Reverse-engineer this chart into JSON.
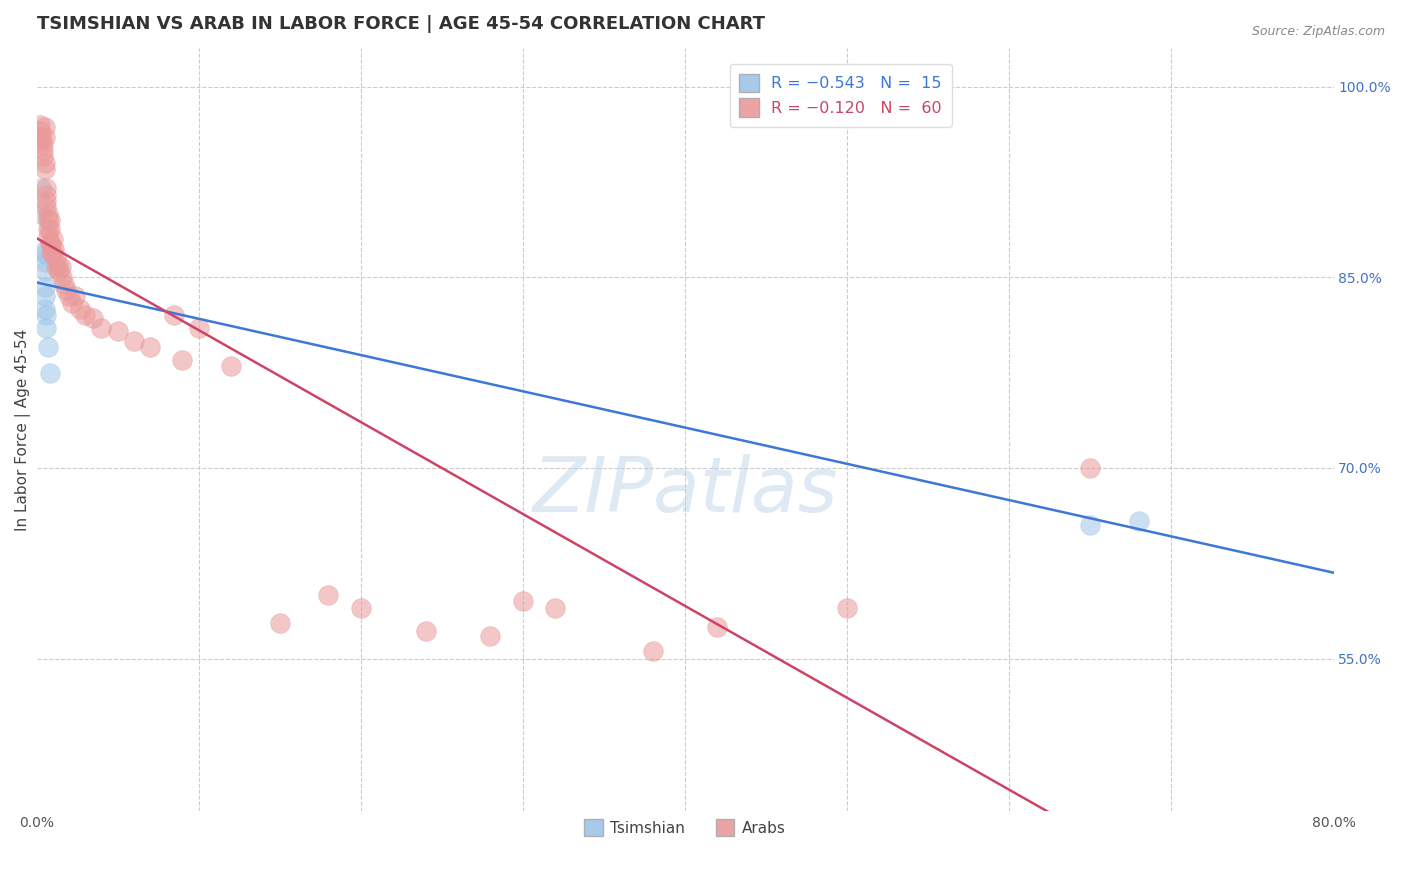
{
  "title": "TSIMSHIAN VS ARAB IN LABOR FORCE | AGE 45-54 CORRELATION CHART",
  "source": "Source: ZipAtlas.com",
  "ylabel": "In Labor Force | Age 45-54",
  "x_min": 0.0,
  "x_max": 0.8,
  "y_min": 0.43,
  "y_max": 1.03,
  "right_yticks": [
    0.55,
    0.7,
    0.85,
    1.0
  ],
  "right_yticklabels": [
    "55.0%",
    "70.0%",
    "85.0%",
    "100.0%"
  ],
  "watermark": "ZIPatlas",
  "tsimshian_x": [
    0.003,
    0.003,
    0.004,
    0.005,
    0.005,
    0.005,
    0.005,
    0.005,
    0.005,
    0.006,
    0.006,
    0.007,
    0.008,
    0.65,
    0.68
  ],
  "tsimshian_y": [
    0.92,
    0.9,
    0.87,
    0.868,
    0.862,
    0.855,
    0.842,
    0.835,
    0.825,
    0.82,
    0.81,
    0.795,
    0.775,
    0.655,
    0.658
  ],
  "arab_x": [
    0.002,
    0.002,
    0.003,
    0.003,
    0.004,
    0.004,
    0.004,
    0.005,
    0.005,
    0.005,
    0.005,
    0.006,
    0.006,
    0.006,
    0.006,
    0.007,
    0.007,
    0.007,
    0.007,
    0.008,
    0.008,
    0.008,
    0.009,
    0.009,
    0.01,
    0.01,
    0.011,
    0.012,
    0.012,
    0.013,
    0.014,
    0.015,
    0.016,
    0.017,
    0.018,
    0.02,
    0.022,
    0.024,
    0.027,
    0.03,
    0.035,
    0.04,
    0.05,
    0.06,
    0.07,
    0.085,
    0.09,
    0.1,
    0.12,
    0.15,
    0.18,
    0.2,
    0.24,
    0.28,
    0.3,
    0.32,
    0.38,
    0.42,
    0.5,
    0.65
  ],
  "arab_y": [
    0.97,
    0.965,
    0.96,
    0.958,
    0.955,
    0.95,
    0.945,
    0.968,
    0.96,
    0.94,
    0.935,
    0.92,
    0.915,
    0.91,
    0.905,
    0.9,
    0.895,
    0.888,
    0.882,
    0.895,
    0.888,
    0.878,
    0.875,
    0.87,
    0.88,
    0.868,
    0.872,
    0.865,
    0.858,
    0.86,
    0.855,
    0.858,
    0.85,
    0.845,
    0.84,
    0.835,
    0.83,
    0.835,
    0.825,
    0.82,
    0.818,
    0.81,
    0.808,
    0.8,
    0.795,
    0.82,
    0.785,
    0.81,
    0.78,
    0.578,
    0.6,
    0.59,
    0.572,
    0.568,
    0.595,
    0.59,
    0.556,
    0.575,
    0.59,
    0.7
  ],
  "tsimshian_color": "#9fc5e8",
  "arab_color": "#ea9999",
  "trend_tsimshian_color": "#3c78d8",
  "trend_arab_color": "#cc4466",
  "background_color": "#ffffff",
  "grid_color": "#cccccc",
  "title_fontsize": 13,
  "axis_label_fontsize": 11,
  "tick_fontsize": 10,
  "right_tick_color": "#4472c4"
}
